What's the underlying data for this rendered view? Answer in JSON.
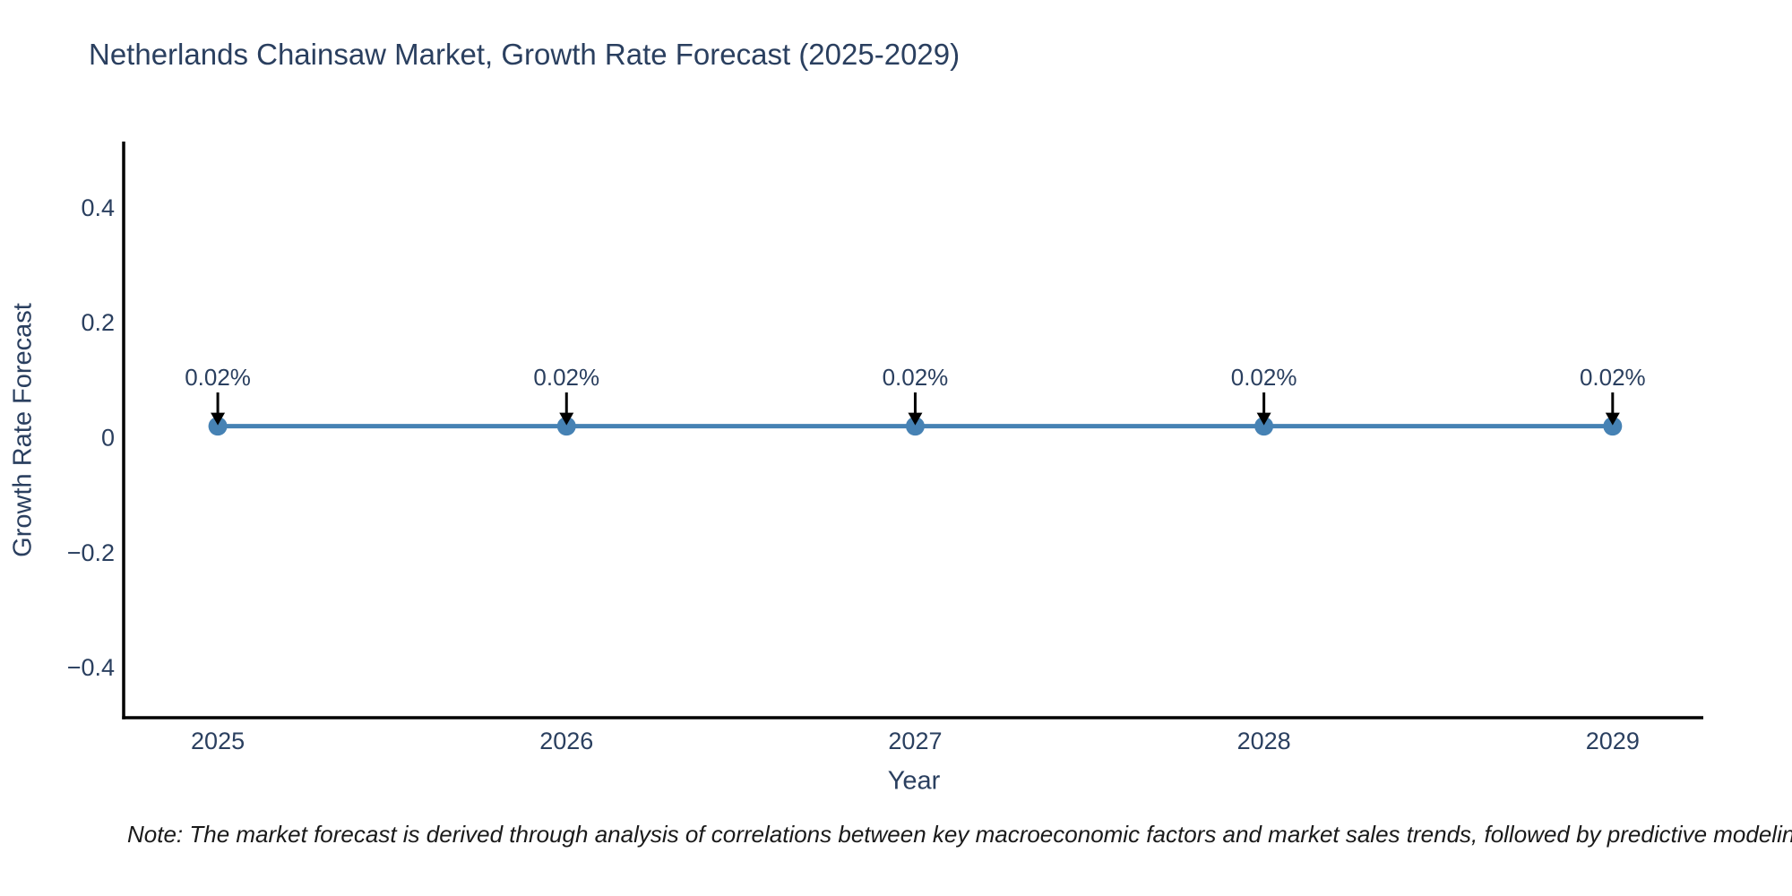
{
  "page": {
    "background": "#ffffff"
  },
  "chart_data": {
    "type": "line",
    "title": "Netherlands Chainsaw Market, Growth Rate Forecast (2025-2029)",
    "xlabel": "Year",
    "ylabel": "Growth Rate Forecast",
    "x": [
      2025,
      2026,
      2027,
      2028,
      2029
    ],
    "series": [
      {
        "name": "Growth Rate Forecast",
        "values": [
          0.02,
          0.02,
          0.02,
          0.02,
          0.02
        ]
      }
    ],
    "point_labels": [
      "0.02%",
      "0.02%",
      "0.02%",
      "0.02%",
      "0.02%"
    ],
    "yticks": [
      0.4,
      0.2,
      0,
      -0.2,
      -0.4
    ],
    "ytick_labels": [
      "0.4",
      "0.2",
      "0",
      "−0.2",
      "−0.4"
    ],
    "xlim": [
      2024.73,
      2029.26
    ],
    "ylim": [
      -0.487,
      0.515
    ],
    "grid": false,
    "legend": "none",
    "colors": {
      "line": "#4682b4",
      "marker": "#4682b4",
      "arrow": "#000000",
      "axis": "#000000",
      "text": "#2a3f5f",
      "note": "#1a1a1a"
    }
  },
  "note": {
    "text": "Note: The market forecast is derived through analysis of correlations between key macroeconomic factors and market sales trends, followed by predictive modeling to project future sa"
  }
}
